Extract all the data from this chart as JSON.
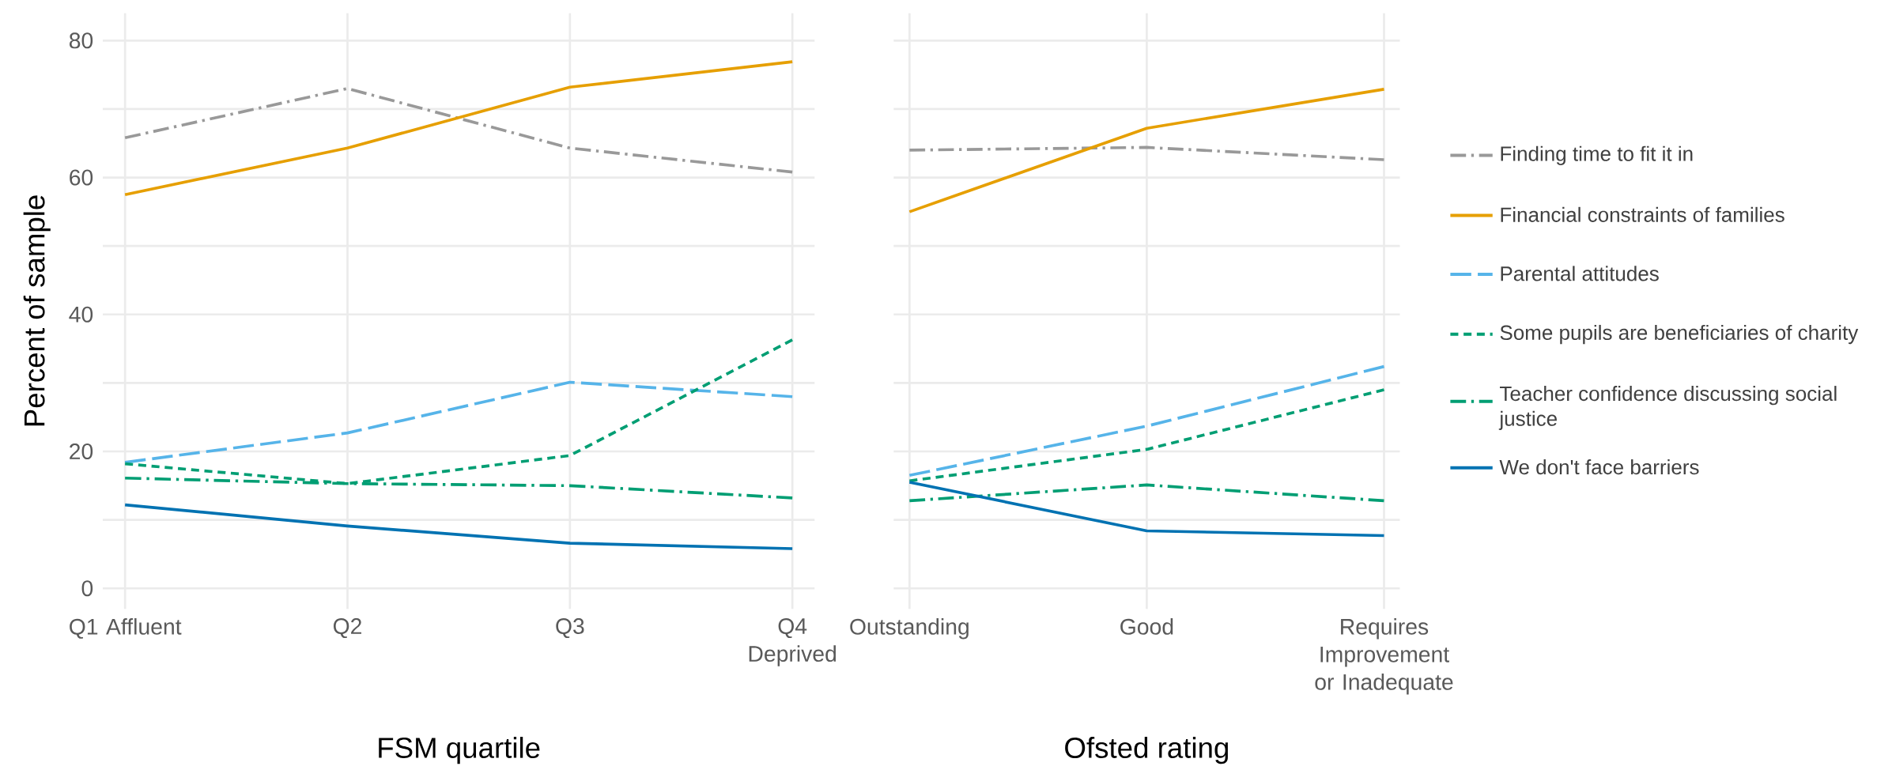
{
  "chart_data": [
    {
      "type": "line",
      "xlabel": "FSM quartile",
      "ylabel": "Percent of sample",
      "categories": [
        "Q1 Affluent",
        "Q2",
        "Q3",
        "Q4 Deprived"
      ],
      "ylim": [
        -3,
        84
      ],
      "yticks": [
        0,
        {
          "value": 10,
          "label": null
        },
        20,
        {
          "value": 30,
          "label": null
        },
        40,
        {
          "value": 50,
          "label": null
        },
        60,
        {
          "value": 70,
          "label": null
        },
        80
      ],
      "grid": true,
      "series": [
        {
          "color": "#999999",
          "line_style": "dashdot",
          "values": [
            65.8,
            73,
            64.3,
            60.8
          ]
        },
        {
          "color": "#e69f00",
          "line_style": "solid",
          "values": [
            57.5,
            64.3,
            73.2,
            76.9
          ]
        },
        {
          "color": "#56b4e9",
          "line_style": "longdash",
          "values": [
            18.4,
            22.7,
            30.1,
            28
          ]
        },
        {
          "color": "#009e73",
          "line_style": "dashed",
          "values": [
            18.2,
            15.3,
            19.4,
            36.3
          ]
        },
        {
          "color": "#009e73",
          "line_style": "dashdot",
          "values": [
            16.1,
            15.3,
            15,
            13.2
          ]
        },
        {
          "color": "#0072b2",
          "line_style": "solid",
          "values": [
            12.2,
            9.1,
            6.6,
            5.8
          ]
        }
      ]
    },
    {
      "type": "line",
      "xlabel": "Ofsted rating",
      "categories": [
        "Outstanding",
        "Good",
        "Requires Improvement or Inadequate"
      ],
      "ylim": [
        -3,
        84
      ],
      "yticks": [
        0,
        {
          "value": 10,
          "label": null
        },
        20,
        {
          "value": 30,
          "label": null
        },
        40,
        {
          "value": 50,
          "label": null
        },
        60,
        {
          "value": 70,
          "label": null
        },
        80
      ],
      "tick_labels": "x",
      "grid": true,
      "legend": "right",
      "series": [
        {
          "name": "Finding time to fit it in",
          "color": "#999999",
          "line_style": "dashdot",
          "values": [
            64,
            64.4,
            62.6
          ]
        },
        {
          "name": "Financial constraints of families",
          "color": "#e69f00",
          "line_style": "solid",
          "values": [
            55,
            67.2,
            72.9
          ]
        },
        {
          "name": "Parental attitudes",
          "color": "#56b4e9",
          "line_style": "longdash",
          "values": [
            16.5,
            23.7,
            32.4
          ]
        },
        {
          "name": "Some pupils are beneficiaries of charity",
          "color": "#009e73",
          "line_style": "dashed",
          "values": [
            15.7,
            20.3,
            29
          ]
        },
        {
          "name": "Teacher confidence discussing social justice",
          "color": "#009e73",
          "line_style": "dashdot",
          "values": [
            12.8,
            15.1,
            12.8
          ]
        },
        {
          "name": "We don't face barriers",
          "color": "#0072b2",
          "line_style": "solid",
          "values": [
            15.5,
            8.4,
            7.7
          ]
        }
      ]
    }
  ]
}
